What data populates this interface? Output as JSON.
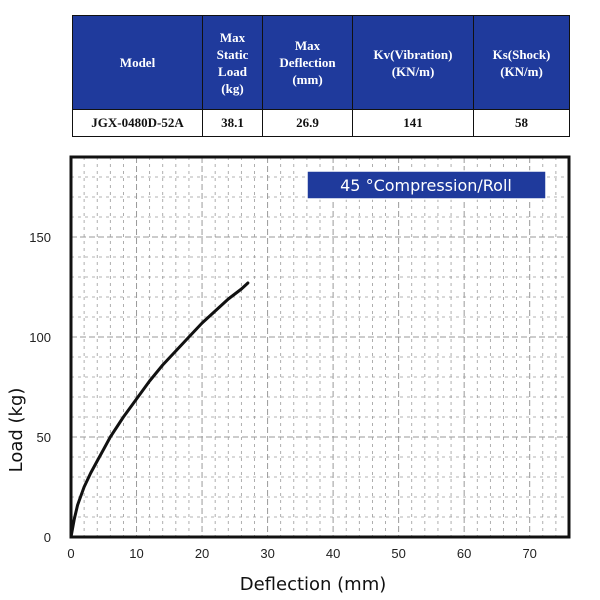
{
  "spec_table": {
    "headers": [
      [
        "Model"
      ],
      [
        "Max",
        "Static",
        "Load",
        "(kg)"
      ],
      [
        "Max",
        "Deflection",
        "(mm)"
      ],
      [
        "Kv(Vibration)",
        "(KN/m)"
      ],
      [
        "Ks(Shock)",
        "(KN/m)"
      ]
    ],
    "row": [
      "JGX-0480D-52A",
      "38.1",
      "26.9",
      "141",
      "58"
    ]
  },
  "colors": {
    "header_bg": "#1f3a9c",
    "legend_bg": "#1f3a9c",
    "curve": "#111111",
    "grid": "#9a9a9a"
  },
  "chart_data": {
    "type": "line",
    "title": "45 °Compression/Roll",
    "xlabel": "Deflection (mm)",
    "ylabel": "Load (kg)",
    "xlim": [
      0,
      76
    ],
    "ylim": [
      0,
      190
    ],
    "xticks": [
      0,
      10,
      20,
      30,
      40,
      50,
      60,
      70
    ],
    "yticks": [
      0,
      50,
      100,
      150
    ],
    "grid": true,
    "legend_position": "top-right",
    "series": [
      {
        "name": "45 °Compression/Roll",
        "x": [
          0,
          0.5,
          1,
          2,
          3,
          4,
          5,
          6,
          8,
          10,
          12,
          14,
          16,
          18,
          20,
          22,
          24,
          26,
          27
        ],
        "y": [
          0,
          9,
          16,
          25,
          32,
          38,
          44,
          50,
          60,
          69,
          78,
          86,
          93,
          100,
          107,
          113,
          119,
          124,
          127
        ]
      }
    ]
  }
}
